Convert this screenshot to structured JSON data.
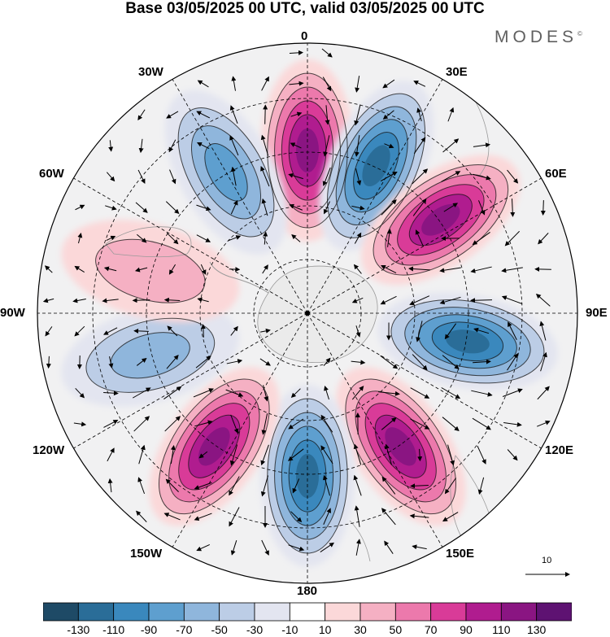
{
  "title": "Base 03/05/2025 00 UTC, valid 03/05/2025 00 UTC",
  "brand": "MODES",
  "brand_mark": "©",
  "lon_labels": [
    "0",
    "30E",
    "60E",
    "90E",
    "120E",
    "150E",
    "180",
    "150W",
    "120W",
    "90W",
    "60W",
    "30W"
  ],
  "reference_vector": {
    "label": "10",
    "value": 10
  },
  "colorbar": {
    "labels": [
      "-130",
      "-110",
      "-90",
      "-70",
      "-50",
      "-30",
      "-10",
      "10",
      "30",
      "50",
      "70",
      "90",
      "110",
      "130"
    ],
    "colors": [
      "#1e4a66",
      "#2a6d98",
      "#3a88bd",
      "#5e9fcf",
      "#8fb6dc",
      "#bccde6",
      "#e3e5f0",
      "#ffffff",
      "#fbd8d9",
      "#f5b0c3",
      "#ec79ac",
      "#d93b98",
      "#b01c8f",
      "#8a1582",
      "#5e1272"
    ]
  },
  "anomaly_lobes": [
    {
      "name": "lobe-0",
      "lon": 0,
      "value": 130
    },
    {
      "name": "lobe-25E",
      "lon": 25,
      "value": -130
    },
    {
      "name": "lobe-55E",
      "lon": 55,
      "value": 130
    },
    {
      "name": "lobe-100E",
      "lon": 100,
      "value": -130
    },
    {
      "name": "lobe-145E",
      "lon": 145,
      "value": 130
    },
    {
      "name": "lobe-180",
      "lon": 180,
      "value": -120
    },
    {
      "name": "lobe-145W",
      "lon": -145,
      "value": 120
    },
    {
      "name": "lobe-105W",
      "lon": -105,
      "value": -70
    },
    {
      "name": "lobe-75W",
      "lon": -75,
      "value": 40
    },
    {
      "name": "lobe-30W",
      "lon": -30,
      "value": -80
    }
  ]
}
